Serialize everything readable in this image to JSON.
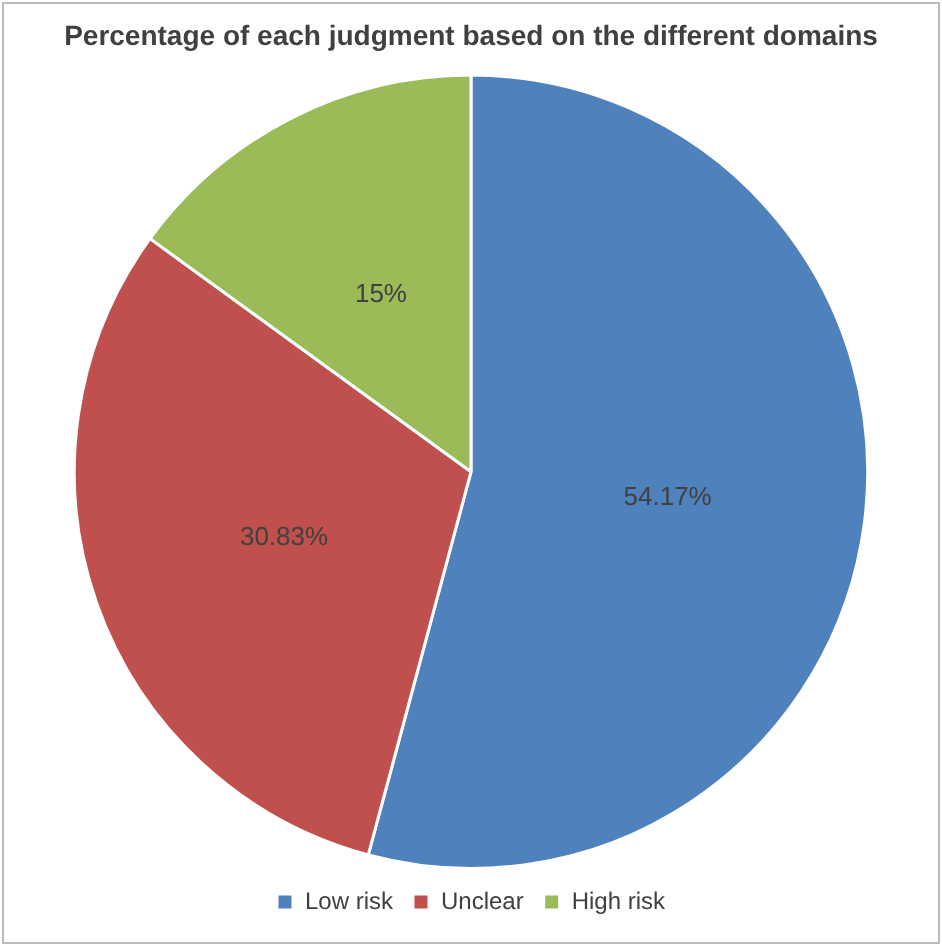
{
  "chart_data": {
    "type": "pie",
    "title": "Percentage of each judgment based on the different domains",
    "categories": [
      "Low risk",
      "Unclear",
      "High risk"
    ],
    "values": [
      54.17,
      30.83,
      15
    ],
    "colors": [
      "#4f81bd",
      "#c0504d",
      "#9bbb59"
    ],
    "value_labels": [
      "54.17%",
      "30.83%",
      "15%"
    ],
    "legend": "bottom"
  }
}
